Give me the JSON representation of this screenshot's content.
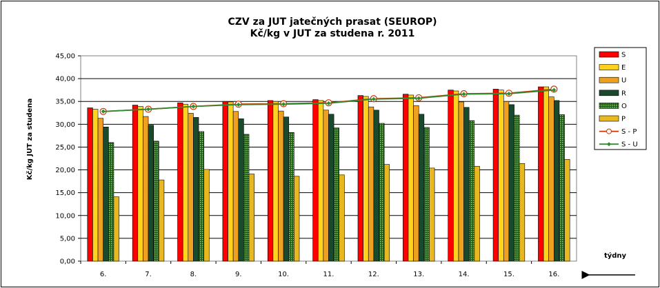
{
  "chart_data": {
    "type": "bar",
    "title_line1": "CZV za JUT jatečných prasat (SEUROP)",
    "title_line2": "Kč/kg v JUT za studena r. 2011",
    "ylabel": "Kč/kg  JUT za studena",
    "xlabel": "týdny",
    "ylim": [
      0,
      45
    ],
    "yticks": [
      "0,00",
      "5,00",
      "10,00",
      "15,00",
      "20,00",
      "25,00",
      "30,00",
      "35,00",
      "40,00",
      "45,00"
    ],
    "categories": [
      "6.",
      "7.",
      "8.",
      "9.",
      "10.",
      "11.",
      "12.",
      "13.",
      "14.",
      "15.",
      "16."
    ],
    "series": [
      {
        "name": "S",
        "color": "#ff0000",
        "values": [
          33.6,
          34.2,
          34.7,
          35.0,
          35.2,
          35.4,
          36.3,
          36.6,
          37.5,
          37.7,
          38.2
        ]
      },
      {
        "name": "E",
        "color": "#ffd21f",
        "values": [
          33.3,
          33.9,
          34.4,
          34.9,
          35.0,
          35.2,
          36.1,
          36.4,
          37.3,
          37.5,
          38.2
        ]
      },
      {
        "name": "U",
        "color": "#f0a020",
        "values": [
          31.3,
          31.7,
          32.4,
          32.8,
          32.9,
          33.1,
          33.8,
          34.1,
          34.9,
          35.0,
          36.0
        ]
      },
      {
        "name": "R",
        "color": "#1a4a2e",
        "values": [
          29.4,
          29.8,
          31.5,
          31.2,
          31.6,
          32.2,
          33.1,
          32.2,
          33.7,
          34.3,
          35.2
        ]
      },
      {
        "name": "O",
        "color": "#6aaa3a",
        "pattern": "dots",
        "values": [
          26.0,
          26.3,
          28.4,
          27.8,
          28.2,
          29.2,
          30.2,
          29.3,
          30.8,
          32.0,
          32.1
        ]
      },
      {
        "name": "P",
        "color": "#e8b820",
        "values": [
          14.1,
          17.8,
          20.1,
          19.1,
          18.6,
          18.9,
          21.2,
          20.4,
          20.8,
          21.4,
          22.3
        ]
      }
    ],
    "lines": [
      {
        "name": "S - P",
        "color": "#cc3300",
        "marker": "circle",
        "values": [
          32.8,
          33.3,
          33.9,
          34.4,
          34.5,
          34.7,
          35.6,
          35.8,
          36.7,
          36.8,
          37.7
        ]
      },
      {
        "name": "S - U",
        "color": "#2e8b2e",
        "marker": "diamond",
        "values": [
          32.8,
          33.3,
          33.9,
          34.3,
          34.4,
          34.6,
          35.5,
          35.7,
          36.6,
          36.7,
          37.5
        ]
      }
    ],
    "grid": true,
    "legend_position": "right"
  }
}
